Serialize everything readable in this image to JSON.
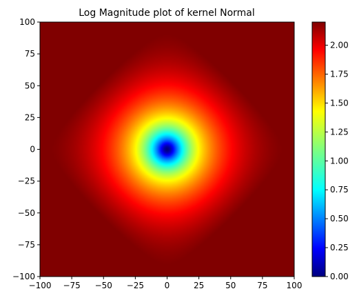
{
  "chart_data": {
    "type": "heatmap",
    "title": "Log Magnitude plot of kernel Normal",
    "xlabel": "",
    "ylabel": "",
    "xlim": [
      -100,
      100
    ],
    "ylim": [
      -100,
      100
    ],
    "x_ticks": [
      "−100",
      "−75",
      "−50",
      "−25",
      "0",
      "25",
      "50",
      "75",
      "100"
    ],
    "y_ticks": [
      "100",
      "75",
      "50",
      "25",
      "0",
      "−25",
      "−50",
      "−75",
      "−100"
    ],
    "colorbar": {
      "colormap": "jet",
      "range": [
        0,
        2.2
      ],
      "ticks": [
        "0.00",
        "0.25",
        "0.50",
        "0.75",
        "1.00",
        "1.25",
        "1.50",
        "1.75",
        "2.00"
      ]
    },
    "grid": false,
    "legend": "none"
  }
}
